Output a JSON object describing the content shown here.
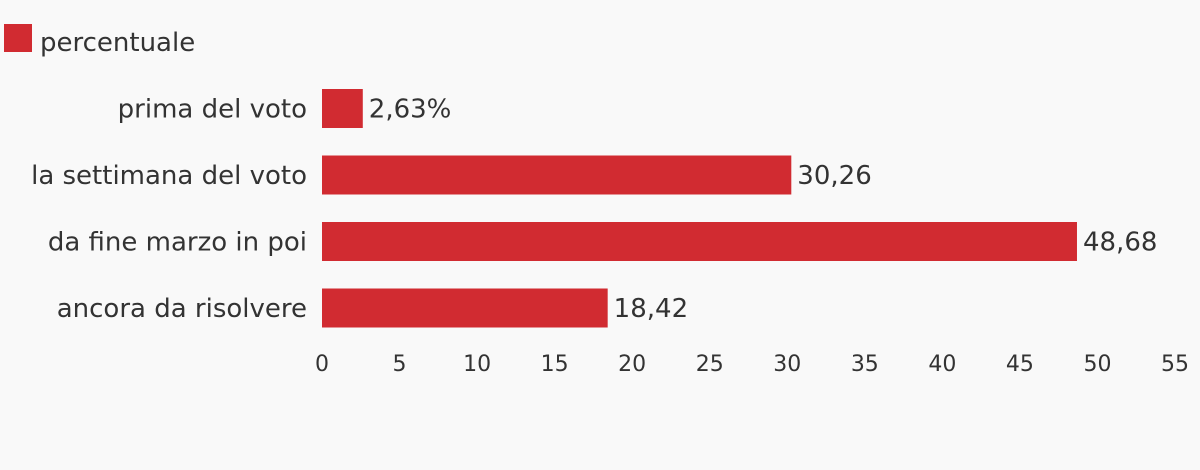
{
  "chart_data": {
    "type": "bar",
    "orientation": "horizontal",
    "title": "",
    "xlabel": "",
    "ylabel": "",
    "categories": [
      "prima del voto",
      "la settimana del voto",
      "da fine marzo in poi",
      "ancora da risolvere"
    ],
    "series": [
      {
        "name": "percentuale",
        "color": "#d12b31",
        "values": [
          2.63,
          30.26,
          48.68,
          18.42
        ],
        "labels": [
          "2,63%",
          "30,26",
          "48,68",
          "18,42"
        ]
      }
    ],
    "xlim": [
      0,
      55
    ],
    "xticks": [
      "0",
      "5",
      "10",
      "15",
      "20",
      "25",
      "30",
      "35",
      "40",
      "45",
      "50",
      "55"
    ],
    "legend": {
      "position": "top-left",
      "entries": [
        "percentuale"
      ]
    },
    "grid": false
  }
}
